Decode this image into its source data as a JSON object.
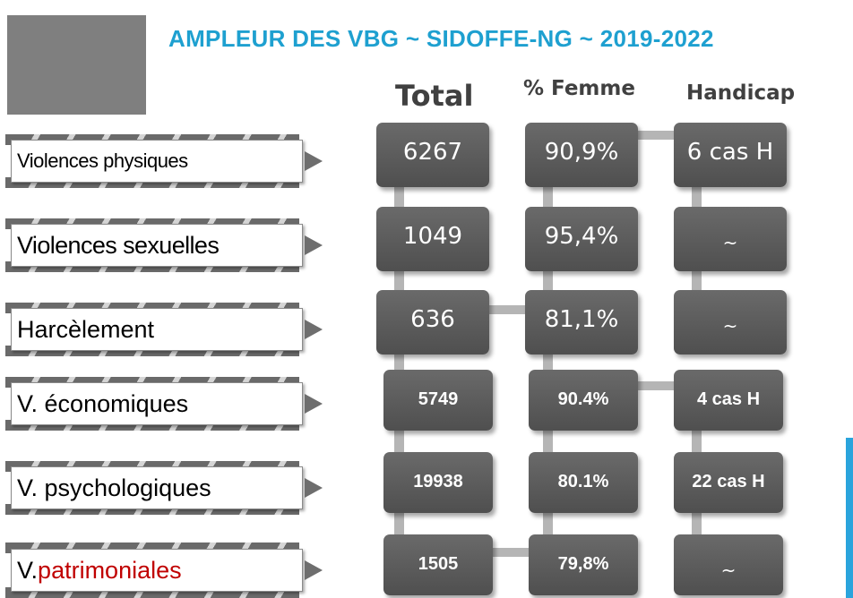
{
  "title": "AMPLEUR DES VBG ~ SIDOFFE-NG ~ 2019-2022",
  "columns": {
    "total": "Total",
    "femme": "% Femme",
    "handicap": "Handicap"
  },
  "rows": [
    {
      "label": "Violences physiques",
      "label_color": "#000000",
      "total": "6267",
      "femme": "90,9%",
      "handicap": "6 cas H"
    },
    {
      "label": "Violences sexuelles",
      "label_color": "#c00000",
      "total": "1049",
      "femme": "95,4%",
      "handicap": "~"
    },
    {
      "label": "Harcèlement",
      "label_color": "#000000",
      "total": "636",
      "femme": "81,1%",
      "handicap": "~"
    },
    {
      "label": "V. économiques",
      "label_color": "#c00000",
      "total": "5749",
      "femme": "90.4%",
      "handicap": "4 cas H"
    },
    {
      "label": "V. psychologiques",
      "label_color": "#000000",
      "total": "19938",
      "femme": "80.1%",
      "handicap": "22 cas H"
    },
    {
      "label_prefix": "V. ",
      "label_emph": "patrimoniales",
      "label_emph_color": "#c00000",
      "total": "1505",
      "femme": "79,8%",
      "handicap": "~"
    }
  ],
  "colors": {
    "title": "#1ea0d0",
    "cell": "#5a5a5a",
    "accent": "#2aa4dc"
  }
}
